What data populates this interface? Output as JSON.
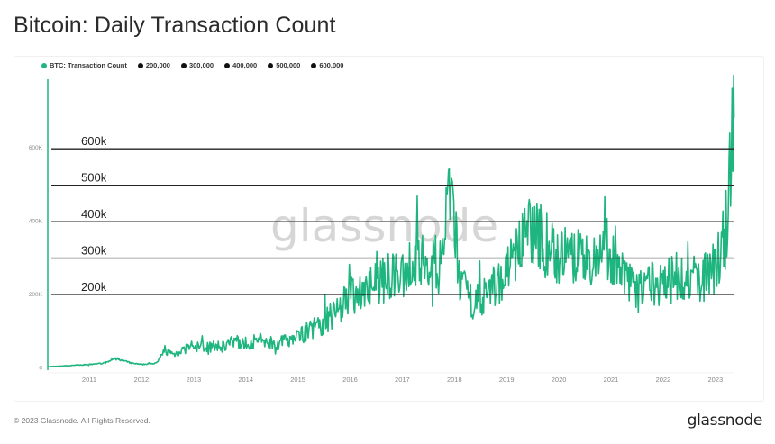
{
  "header": {
    "title": "Bitcoin: Daily Transaction Count"
  },
  "legend": [
    {
      "label": "BTC: Transaction Count",
      "color": "#1fb57e"
    },
    {
      "label": "200,000",
      "color": "#111111"
    },
    {
      "label": "300,000",
      "color": "#111111"
    },
    {
      "label": "400,000",
      "color": "#111111"
    },
    {
      "label": "500,000",
      "color": "#111111"
    },
    {
      "label": "600,000",
      "color": "#111111"
    }
  ],
  "watermark": "glassnode",
  "footer": {
    "copyright": "© 2023 Glassnode. All Rights Reserved.",
    "brand": "glassnode"
  },
  "colors": {
    "series": "#1fb57e",
    "reference_lines": "#222222",
    "axis_text": "#8a8a8a"
  },
  "chart_data": {
    "type": "area",
    "title": "Bitcoin: Daily Transaction Count",
    "xlabel": "",
    "ylabel": "",
    "ylim": [
      0,
      750000
    ],
    "y_ticks": [
      {
        "value": 0,
        "label": "0"
      },
      {
        "value": 200000,
        "label": "200K"
      },
      {
        "value": 400000,
        "label": "400K"
      },
      {
        "value": 600000,
        "label": "600K"
      }
    ],
    "x_ticks": [
      "2011",
      "2012",
      "2013",
      "2014",
      "2015",
      "2016",
      "2017",
      "2018",
      "2019",
      "2020",
      "2021",
      "2022",
      "2023"
    ],
    "grid": false,
    "legend_position": "top-left",
    "reference_lines": [
      {
        "value": 200000,
        "label": "200k"
      },
      {
        "value": 300000,
        "label": "300k"
      },
      {
        "value": 400000,
        "label": "400k"
      },
      {
        "value": 500000,
        "label": "500k"
      },
      {
        "value": 600000,
        "label": "600k"
      }
    ],
    "series": [
      {
        "name": "BTC: Transaction Count",
        "x": [
          2010.2,
          2010.6,
          2011.0,
          2011.3,
          2011.5,
          2011.8,
          2012.0,
          2012.3,
          2012.45,
          2012.6,
          2012.9,
          2013.2,
          2013.5,
          2013.8,
          2014.0,
          2014.3,
          2014.6,
          2014.9,
          2015.2,
          2015.5,
          2015.7,
          2016.0,
          2016.3,
          2016.6,
          2016.9,
          2017.2,
          2017.5,
          2017.7,
          2017.95,
          2018.1,
          2018.3,
          2018.6,
          2018.9,
          2019.1,
          2019.3,
          2019.5,
          2019.7,
          2020.0,
          2020.3,
          2020.6,
          2020.9,
          2021.1,
          2021.3,
          2021.5,
          2021.8,
          2022.1,
          2022.4,
          2022.7,
          2023.0,
          2023.2,
          2023.35
        ],
        "values": [
          2000,
          5000,
          8000,
          12000,
          25000,
          12000,
          8000,
          12000,
          50000,
          35000,
          55000,
          60000,
          55000,
          70000,
          65000,
          75000,
          65000,
          80000,
          100000,
          120000,
          150000,
          200000,
          210000,
          240000,
          250000,
          280000,
          310000,
          270000,
          480000,
          230000,
          180000,
          200000,
          240000,
          280000,
          340000,
          380000,
          340000,
          310000,
          290000,
          300000,
          320000,
          300000,
          230000,
          200000,
          230000,
          240000,
          250000,
          240000,
          270000,
          380000,
          680000
        ]
      }
    ]
  }
}
